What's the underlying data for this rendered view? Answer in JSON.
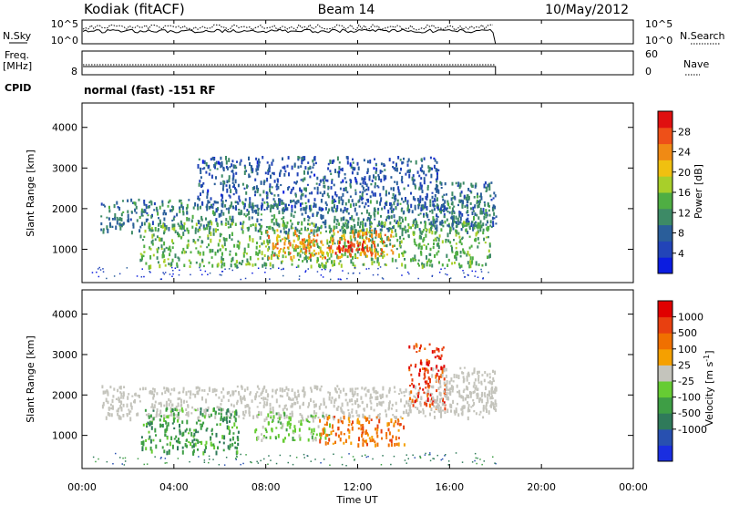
{
  "header": {
    "station": "Kodiak (fitACF)",
    "beam": "Beam 14",
    "date": "10/May/2012"
  },
  "noise_panel": {
    "left_label": "N.Sky",
    "left_ticks": [
      "10^5",
      "10^0"
    ],
    "right_ticks": [
      "10^5",
      "10^0"
    ],
    "right_label": "N.Search"
  },
  "freq_panel": {
    "left_label_1": "Freq.",
    "left_label_2": "[MHz]",
    "left_tick": "8",
    "right_ticks": [
      "60",
      "0"
    ],
    "right_label": "Nave"
  },
  "cpid": {
    "label": "CPID",
    "mode_text": "normal (fast) -151 RF"
  },
  "chart_data": [
    {
      "type": "heatmap",
      "name": "power",
      "ylabel": "Slant Range [km]",
      "xlabel": "Time UT",
      "x_ticks": [
        "00:00",
        "04:00",
        "08:00",
        "12:00",
        "16:00",
        "20:00",
        "00:00"
      ],
      "x_range_hours": [
        0,
        24
      ],
      "data_end_hour": 18,
      "y_ticks": [
        1000,
        2000,
        3000,
        4000
      ],
      "ylim": [
        180,
        4600
      ],
      "colorbar": {
        "label": "Power [dB]",
        "ticks": [
          4,
          8,
          12,
          16,
          20,
          24,
          28
        ],
        "range": [
          0,
          32
        ],
        "colors": [
          "#0b1ce0",
          "#2244b8",
          "#2a5e9a",
          "#3d8a66",
          "#4fae43",
          "#a8cf2a",
          "#f0c010",
          "#f08a14",
          "#ee5018",
          "#e01010"
        ]
      },
      "echo_bands": [
        {
          "t": [
            0.8,
            18.0
          ],
          "range_km": [
            1450,
            2250
          ],
          "value": 10
        },
        {
          "t": [
            2.5,
            17.8
          ],
          "range_km": [
            600,
            1700
          ],
          "value": 14
        },
        {
          "t": [
            8.0,
            13.5
          ],
          "range_km": [
            800,
            1500
          ],
          "value": 24
        },
        {
          "t": [
            11.0,
            12.3
          ],
          "range_km": [
            900,
            1350
          ],
          "value": 29
        },
        {
          "t": [
            15.2,
            18.0
          ],
          "range_km": [
            1600,
            2700
          ],
          "value": 9
        },
        {
          "t": [
            5.0,
            15.5
          ],
          "range_km": [
            2000,
            3300
          ],
          "value": 7
        }
      ]
    },
    {
      "type": "heatmap",
      "name": "velocity",
      "ylabel": "Slant Range [km]",
      "xlabel": "Time UT",
      "x_ticks": [
        "00:00",
        "04:00",
        "08:00",
        "12:00",
        "16:00",
        "20:00",
        "00:00"
      ],
      "x_range_hours": [
        0,
        24
      ],
      "y_ticks": [
        1000,
        2000,
        3000,
        4000
      ],
      "colorbar": {
        "label": "Velocity [m s^-1]",
        "ticks": [
          "1000",
          "500",
          "100",
          "25",
          "-25",
          "-100",
          "-500",
          "-1000"
        ],
        "colors": [
          "#1a2ee0",
          "#2850b0",
          "#2f7a5a",
          "#3e9e45",
          "#66cc33",
          "#c4c4bc",
          "#f5a000",
          "#f07000",
          "#e84010",
          "#e00000"
        ]
      },
      "echo_bands": [
        {
          "t": [
            0.8,
            18.0
          ],
          "range_km": [
            1450,
            2250
          ],
          "class": "ground"
        },
        {
          "t": [
            2.5,
            6.8
          ],
          "range_km": [
            600,
            1700
          ],
          "class": 3
        },
        {
          "t": [
            7.5,
            10.8
          ],
          "range_km": [
            900,
            1600
          ],
          "class": 4
        },
        {
          "t": [
            10.3,
            14.0
          ],
          "range_km": [
            800,
            1500
          ],
          "class": 7
        },
        {
          "t": [
            14.2,
            15.8
          ],
          "range_km": [
            1700,
            3300
          ],
          "class": 8
        },
        {
          "t": [
            15.2,
            18.0
          ],
          "range_km": [
            1600,
            2700
          ],
          "class": "ground"
        }
      ]
    }
  ]
}
